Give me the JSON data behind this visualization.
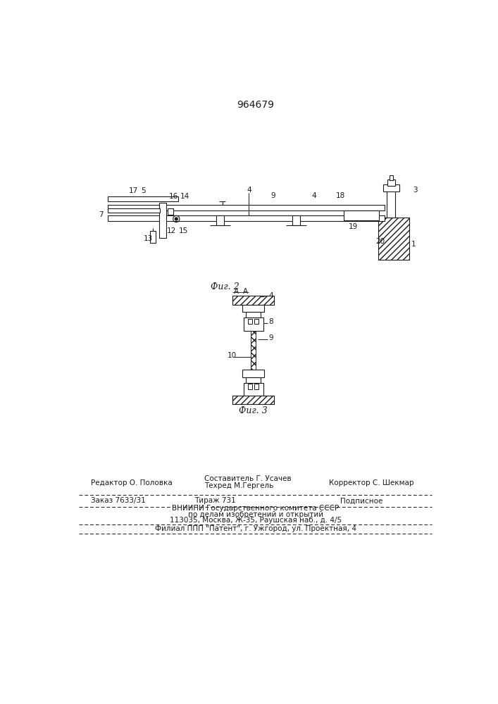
{
  "patent_number": "964679",
  "bg_color": "#ffffff",
  "line_color": "#1a1a1a",
  "footer_line1_left": "Редактор О. Половка",
  "footer_line1_center_top": "Составитель Г. Усачев",
  "footer_line1_center_bot": "Техред М.Гергель",
  "footer_line1_right": "Корректор С. Шекмар",
  "footer_line2_left": "Заказ 7633/31",
  "footer_line2_center_top": "Тираж 731",
  "footer_line2_center_right": "Подписное",
  "footer_line3_center": "ВНИИПИ Государственного комитета СССР",
  "footer_line4_center": "по делам изобретений и открытий",
  "footer_line5_center": "113035, Москва, Ж-35, Раушская наб., д. 4/5",
  "footer_line6_center": "Филиал ППП \"Патент\", г. Ужгород, ул. Проектная, 4"
}
